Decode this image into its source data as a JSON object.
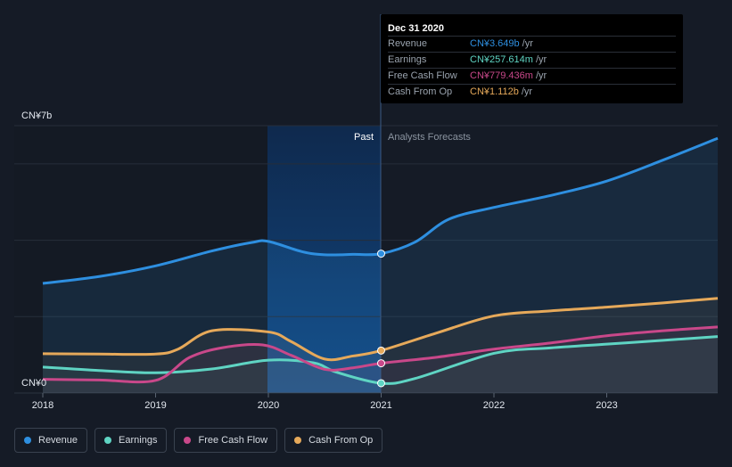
{
  "chart_data": {
    "type": "area",
    "y_top_label": "CN¥7b",
    "y_bottom_label": "CN¥0",
    "ylim": [
      0,
      7
    ],
    "x_ticks": [
      "2018",
      "2019",
      "2020",
      "2021",
      "2022",
      "2023"
    ],
    "past_label": "Past",
    "forecast_label": "Analysts Forecasts",
    "series": [
      {
        "name": "Revenue",
        "color": "#2e8fe0",
        "x": [
          2018.0,
          2018.5,
          2019.0,
          2019.5,
          2019.85,
          2020.0,
          2020.3,
          2020.5,
          2020.75,
          2021.0,
          2021.3,
          2021.6,
          2022.0,
          2022.5,
          2023.0,
          2023.5,
          2024.0
        ],
        "y": [
          2.87,
          3.05,
          3.33,
          3.72,
          3.94,
          3.97,
          3.7,
          3.62,
          3.63,
          3.649,
          3.95,
          4.55,
          4.86,
          5.17,
          5.55,
          6.1,
          6.67
        ]
      },
      {
        "name": "Earnings",
        "color": "#5fd4c3",
        "x": [
          2018.0,
          2018.5,
          2019.0,
          2019.5,
          2020.0,
          2020.4,
          2020.6,
          2021.0,
          2021.3,
          2022.0,
          2022.5,
          2023.0,
          2023.5,
          2024.0
        ],
        "y": [
          0.68,
          0.59,
          0.53,
          0.63,
          0.86,
          0.79,
          0.55,
          0.258,
          0.38,
          1.04,
          1.18,
          1.28,
          1.38,
          1.48
        ]
      },
      {
        "name": "Free Cash Flow",
        "color": "#c9488a",
        "x": [
          2018.0,
          2018.5,
          2019.0,
          2019.3,
          2019.6,
          2019.95,
          2020.2,
          2020.5,
          2020.75,
          2021.0,
          2021.5,
          2022.0,
          2022.5,
          2023.0,
          2023.5,
          2024.0
        ],
        "y": [
          0.36,
          0.34,
          0.33,
          0.93,
          1.19,
          1.26,
          0.99,
          0.62,
          0.66,
          0.779,
          0.94,
          1.15,
          1.31,
          1.5,
          1.63,
          1.73
        ]
      },
      {
        "name": "Cash From Op",
        "color": "#e6a95a",
        "x": [
          2018.0,
          2018.5,
          2019.0,
          2019.2,
          2019.5,
          2020.0,
          2020.2,
          2020.5,
          2020.75,
          2021.0,
          2021.5,
          2022.0,
          2022.5,
          2023.0,
          2023.5,
          2024.0
        ],
        "y": [
          1.03,
          1.02,
          1.02,
          1.15,
          1.63,
          1.6,
          1.35,
          0.89,
          0.97,
          1.112,
          1.58,
          2.02,
          2.15,
          2.25,
          2.36,
          2.48
        ]
      }
    ],
    "highlight_x": 2021.0
  },
  "tooltip": {
    "date": "Dec 31 2020",
    "rows": [
      {
        "name": "Revenue",
        "value": "CN¥3.649b",
        "unit": "/yr",
        "color": "#2e8fe0"
      },
      {
        "name": "Earnings",
        "value": "CN¥257.614m",
        "unit": "/yr",
        "color": "#5fd4c3"
      },
      {
        "name": "Free Cash Flow",
        "value": "CN¥779.436m",
        "unit": "/yr",
        "color": "#c9488a"
      },
      {
        "name": "Cash From Op",
        "value": "CN¥1.112b",
        "unit": "/yr",
        "color": "#e6a95a"
      }
    ]
  },
  "legend": [
    {
      "label": "Revenue",
      "color": "#2e8fe0"
    },
    {
      "label": "Earnings",
      "color": "#5fd4c3"
    },
    {
      "label": "Free Cash Flow",
      "color": "#c9488a"
    },
    {
      "label": "Cash From Op",
      "color": "#e6a95a"
    }
  ]
}
